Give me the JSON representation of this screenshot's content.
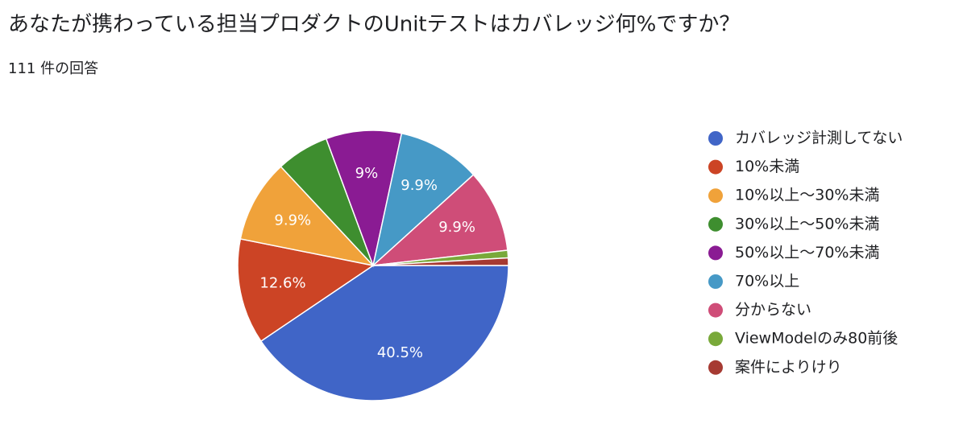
{
  "chart_data": {
    "type": "pie",
    "title": "あなたが携わっている担当プロダクトのUnitテストはカバレッジ何%ですか？",
    "subtitle": "111 件の回答",
    "categories": [
      "カバレッジ計測してない",
      "10%未満",
      "10%以上〜30%未満",
      "30%以上〜50%未満",
      "50%以上〜70%未満",
      "70%以上",
      "分からない",
      "ViewModelのみ80前後",
      "案件によりけり"
    ],
    "values": [
      40.5,
      12.6,
      9.9,
      6.3,
      9,
      9.9,
      9.9,
      0.9,
      0.9
    ],
    "value_labels": [
      "40.5%",
      "12.6%",
      "9.9%",
      null,
      "9%",
      "9.9%",
      "9.9%",
      null,
      null
    ],
    "colors": [
      "#4065c7",
      "#cc4425",
      "#f0a23a",
      "#3e8e2f",
      "#8a1b93",
      "#4699c6",
      "#cf4d78",
      "#79a93a",
      "#a63a32"
    ],
    "legend": "right"
  }
}
